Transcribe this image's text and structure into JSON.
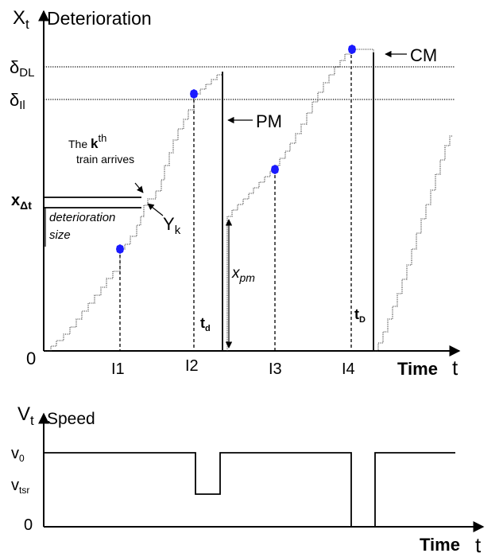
{
  "top_panel": {
    "y_var": "X",
    "y_sub": "t",
    "y_title": "Deterioration",
    "x_title": "Time",
    "x_var": "t",
    "origin": "0",
    "thresholds": {
      "dl": {
        "sym": "δ",
        "sub": "DL"
      },
      "il": {
        "sym": "δ",
        "sub": "Il"
      }
    },
    "x_delta_t": {
      "main": "x",
      "sub": "Δt"
    },
    "deterioration_size": [
      "deterioration",
      "size"
    ],
    "kth_train": {
      "pre": "The ",
      "k": "k",
      "sup": "th",
      "line2": "train arrives"
    },
    "y_k": {
      "main": "Y",
      "sub": "k"
    },
    "pm_label": "PM",
    "cm_label": "CM",
    "x_pm": {
      "main": "x",
      "sub": "pm"
    },
    "t_d": {
      "main": "t",
      "sub": "d"
    },
    "t_D": {
      "main": "t",
      "sub": "D"
    },
    "inspections": [
      "I1",
      "I2",
      "I3",
      "I4"
    ],
    "marker_color": "#1a1aff"
  },
  "bottom_panel": {
    "y_var": "V",
    "y_sub": "t",
    "y_title": "Speed",
    "x_title": "Time",
    "x_var": "t",
    "v0": {
      "main": "v",
      "sub": "0"
    },
    "vtsr": {
      "main": "v",
      "sub": "tsr"
    },
    "zero": "0"
  }
}
